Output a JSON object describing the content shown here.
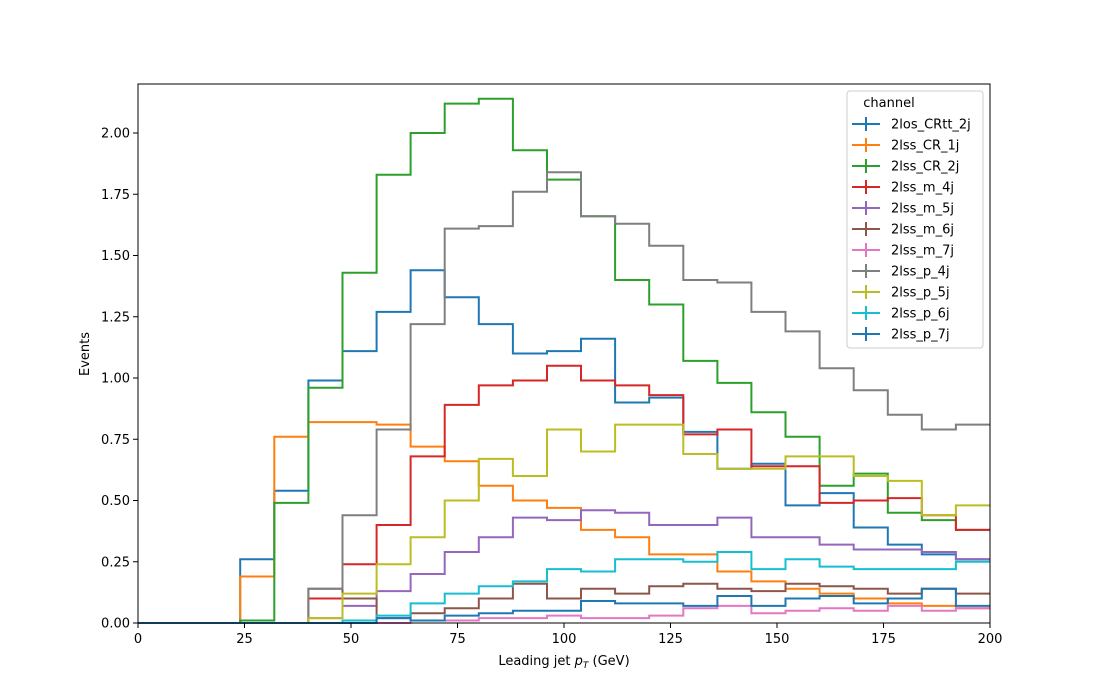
{
  "chart_data": {
    "type": "line",
    "drawstyle": "step-histogram",
    "xlabel": "Leading jet  p_T (GeV)",
    "xlabel_parts": {
      "prefix": "Leading jet  ",
      "var": "p",
      "sub": "T",
      "suffix": " (GeV)"
    },
    "ylabel": "Events",
    "xlim": [
      0,
      200
    ],
    "ylim": [
      0,
      2.2
    ],
    "x_ticks": [
      "0",
      "25",
      "50",
      "75",
      "100",
      "125",
      "150",
      "175",
      "200"
    ],
    "y_ticks": [
      "0.00",
      "0.25",
      "0.50",
      "0.75",
      "1.00",
      "1.25",
      "1.50",
      "1.75",
      "2.00"
    ],
    "grid": false,
    "legend": {
      "title": "channel",
      "placement": "top-right"
    },
    "bin_edges": [
      0,
      8,
      16,
      24,
      32,
      40,
      48,
      56,
      64,
      72,
      80,
      88,
      96,
      104,
      112,
      120,
      128,
      136,
      144,
      152,
      160,
      168,
      176,
      184,
      192,
      200
    ],
    "series": [
      {
        "name": "2los_CRtt_2j",
        "color": "#1f77b4",
        "values": [
          0,
          0,
          0,
          0.26,
          0.54,
          0.99,
          1.11,
          1.27,
          1.44,
          1.33,
          1.22,
          1.1,
          1.11,
          1.16,
          0.9,
          0.92,
          0.78,
          0.63,
          0.65,
          0.48,
          0.53,
          0.39,
          0.32,
          0.28,
          0.26
        ]
      },
      {
        "name": "2lss_CR_1j",
        "color": "#ff7f0e",
        "values": [
          0,
          0,
          0,
          0.19,
          0.76,
          0.82,
          0.82,
          0.81,
          0.72,
          0.66,
          0.56,
          0.5,
          0.47,
          0.38,
          0.35,
          0.28,
          0.28,
          0.21,
          0.17,
          0.14,
          0.12,
          0.1,
          0.08,
          0.07,
          0.06
        ]
      },
      {
        "name": "2lss_CR_2j",
        "color": "#2ca02c",
        "values": [
          0,
          0,
          0,
          0.01,
          0.49,
          0.96,
          1.43,
          1.83,
          2.0,
          2.12,
          2.14,
          1.93,
          1.81,
          1.66,
          1.4,
          1.3,
          1.07,
          0.98,
          0.86,
          0.76,
          0.56,
          0.61,
          0.45,
          0.42,
          0.38
        ]
      },
      {
        "name": "2lss_m_4j",
        "color": "#d62728",
        "values": [
          0,
          0,
          0,
          0,
          0,
          0.1,
          0.24,
          0.4,
          0.68,
          0.89,
          0.97,
          0.99,
          1.05,
          0.99,
          0.97,
          0.93,
          0.77,
          0.79,
          0.64,
          0.64,
          0.49,
          0.5,
          0.51,
          0.44,
          0.38
        ]
      },
      {
        "name": "2lss_m_5j",
        "color": "#9467bd",
        "values": [
          0,
          0,
          0,
          0,
          0,
          0.02,
          0.07,
          0.13,
          0.2,
          0.29,
          0.35,
          0.43,
          0.42,
          0.46,
          0.45,
          0.4,
          0.4,
          0.43,
          0.35,
          0.35,
          0.32,
          0.3,
          0.3,
          0.29,
          0.26
        ]
      },
      {
        "name": "2lss_m_6j",
        "color": "#8c564b",
        "values": [
          0,
          0,
          0,
          0,
          0,
          0.14,
          0.1,
          0.02,
          0.04,
          0.06,
          0.1,
          0.16,
          0.1,
          0.14,
          0.12,
          0.15,
          0.16,
          0.14,
          0.13,
          0.16,
          0.15,
          0.14,
          0.12,
          0.14,
          0.12
        ]
      },
      {
        "name": "2lss_m_7j",
        "color": "#e377c2",
        "values": [
          0,
          0,
          0,
          0,
          0,
          0,
          0,
          0,
          0.01,
          0.01,
          0.02,
          0.02,
          0.03,
          0.02,
          0.02,
          0.03,
          0.06,
          0.07,
          0.04,
          0.05,
          0.06,
          0.05,
          0.07,
          0.05,
          0.06
        ]
      },
      {
        "name": "2lss_p_4j",
        "color": "#7f7f7f",
        "values": [
          0,
          0,
          0,
          0,
          0,
          0.14,
          0.44,
          0.79,
          1.22,
          1.61,
          1.62,
          1.76,
          1.84,
          1.66,
          1.63,
          1.54,
          1.4,
          1.39,
          1.27,
          1.19,
          1.04,
          0.95,
          0.85,
          0.79,
          0.81
        ]
      },
      {
        "name": "2lss_p_5j",
        "color": "#bcbd22",
        "values": [
          0,
          0,
          0,
          0,
          0,
          0.02,
          0.12,
          0.24,
          0.35,
          0.5,
          0.67,
          0.6,
          0.79,
          0.7,
          0.81,
          0.81,
          0.69,
          0.63,
          0.63,
          0.68,
          0.68,
          0.6,
          0.58,
          0.44,
          0.48
        ]
      },
      {
        "name": "2lss_p_6j",
        "color": "#17becf",
        "values": [
          0,
          0,
          0,
          0,
          0,
          0,
          0.01,
          0.03,
          0.08,
          0.12,
          0.15,
          0.17,
          0.22,
          0.21,
          0.26,
          0.26,
          0.25,
          0.29,
          0.22,
          0.26,
          0.23,
          0.22,
          0.22,
          0.22,
          0.25
        ]
      },
      {
        "name": "2lss_p_7j",
        "color": "#1f77b4",
        "values": [
          0,
          0,
          0,
          0,
          0,
          0,
          0,
          0.02,
          0.01,
          0.03,
          0.04,
          0.05,
          0.05,
          0.09,
          0.08,
          0.08,
          0.07,
          0.11,
          0.07,
          0.1,
          0.11,
          0.08,
          0.1,
          0.14,
          0.07
        ]
      }
    ]
  }
}
